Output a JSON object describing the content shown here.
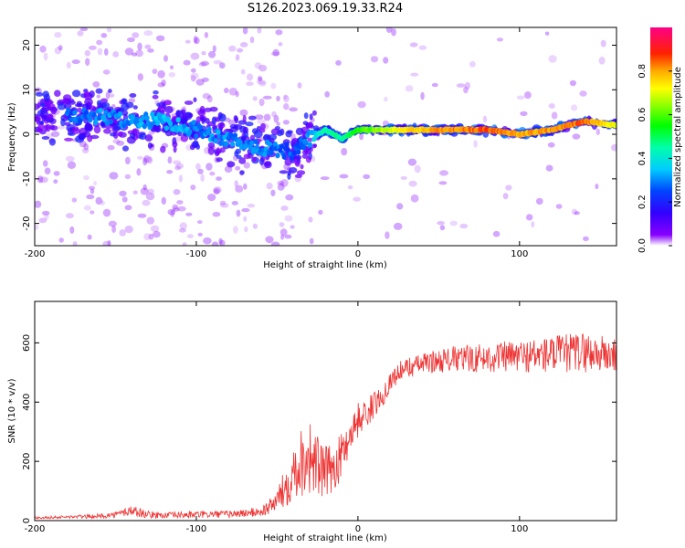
{
  "figure": {
    "title": "S126.2023.069.19.33.R24"
  },
  "chart_data": [
    {
      "type": "heatmap",
      "xlabel": "Height of straight line (km)",
      "ylabel": "Frequency (Hz)",
      "xlim": [
        -200,
        160
      ],
      "ylim": [
        -25,
        24
      ],
      "xticks": [
        "-200",
        "-100",
        "0",
        "100"
      ],
      "yticks": [
        "20",
        "10",
        "0",
        "-10",
        "-20"
      ],
      "grid": false,
      "colorbar": {
        "label": "Normalized spectral amplitude",
        "range": [
          0,
          1
        ],
        "ticks": [
          "0.0",
          "0.2",
          "0.4",
          "0.6",
          "0.8"
        ],
        "colormap": [
          "#ffffff",
          "#5500ff",
          "#0000ff",
          "#00ffff",
          "#00ff00",
          "#ffff00",
          "#ff8800",
          "#ff0000",
          "#ff0080"
        ]
      },
      "ridge": {
        "x": [
          -180,
          -160,
          -140,
          -120,
          -100,
          -80,
          -60,
          -40,
          -30,
          -20,
          -10,
          0,
          20,
          50,
          80,
          100,
          120,
          140,
          160
        ],
        "freq": [
          4,
          4,
          3,
          3,
          1,
          -1,
          -3,
          -4,
          -1,
          1,
          -1,
          1,
          1,
          1,
          1,
          0,
          1,
          3,
          2
        ],
        "amp": [
          0.25,
          0.3,
          0.3,
          0.35,
          0.3,
          0.3,
          0.3,
          0.25,
          0.3,
          0.45,
          0.45,
          0.55,
          0.7,
          0.8,
          0.85,
          0.8,
          0.8,
          0.85,
          0.7
        ]
      }
    },
    {
      "type": "line",
      "xlabel": "Height of straight line (km)",
      "ylabel": "SNR (10 * v/v)",
      "xlim": [
        -200,
        160
      ],
      "ylim": [
        0,
        740
      ],
      "xticks": [
        "-200",
        "-100",
        "0",
        "100"
      ],
      "yticks": [
        "600",
        "400",
        "200",
        "0"
      ],
      "grid": false,
      "series": [
        {
          "color": "#ee3333",
          "x": [
            -200,
            -180,
            -160,
            -150,
            -140,
            -130,
            -120,
            -100,
            -80,
            -70,
            -60,
            -55,
            -50,
            -45,
            -40,
            -35,
            -30,
            -25,
            -20,
            -15,
            -10,
            -5,
            0,
            5,
            10,
            15,
            20,
            25,
            30,
            40,
            50,
            60,
            80,
            100,
            120,
            140,
            160
          ],
          "y": [
            10,
            12,
            15,
            20,
            35,
            20,
            18,
            20,
            22,
            25,
            30,
            45,
            70,
            110,
            170,
            200,
            220,
            180,
            160,
            180,
            220,
            290,
            340,
            360,
            390,
            420,
            470,
            500,
            515,
            530,
            540,
            545,
            550,
            555,
            560,
            570,
            555
          ],
          "noise": [
            4,
            5,
            8,
            10,
            20,
            12,
            10,
            12,
            12,
            14,
            18,
            25,
            40,
            70,
            100,
            120,
            130,
            110,
            90,
            80,
            80,
            60,
            60,
            50,
            45,
            40,
            30,
            35,
            35,
            35,
            40,
            45,
            50,
            55,
            65,
            70,
            60
          ]
        }
      ]
    }
  ]
}
